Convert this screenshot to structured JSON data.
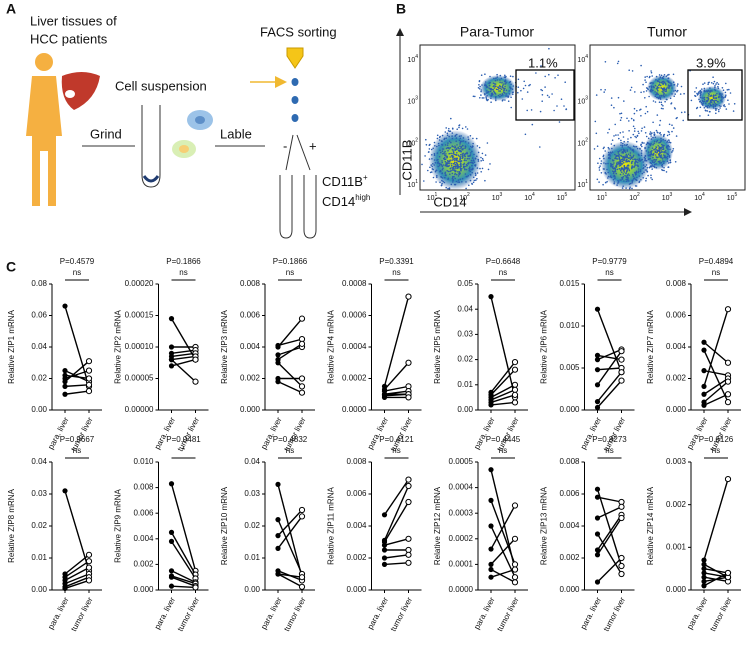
{
  "panel_a": {
    "label": "A",
    "patient_lines": [
      "Liver tissues of",
      "HCC patients"
    ],
    "suspension": "Cell suspension",
    "sorting": "FACS sorting",
    "grind": "Grind",
    "lable": "Lable",
    "minus": "-",
    "plus": "+",
    "markers": [
      {
        "main": "CD11B",
        "sup": "+"
      },
      {
        "main": "CD14",
        "sup": "high"
      }
    ]
  },
  "panel_b": {
    "label": "B",
    "titles": [
      "Para-Tumor",
      "Tumor"
    ],
    "gates": [
      "1.1%",
      "3.9%"
    ],
    "ylabel": "CD11B",
    "xlabel": "CD14",
    "yticks": [
      {
        "base": "10",
        "exp": "4"
      },
      {
        "base": "10",
        "exp": "3"
      },
      {
        "base": "10",
        "exp": "2"
      },
      {
        "base": "10",
        "exp": "1"
      }
    ],
    "xticks": [
      {
        "base": "10",
        "exp": "1"
      },
      {
        "base": "10",
        "exp": "2"
      },
      {
        "base": "10",
        "exp": "3"
      },
      {
        "base": "10",
        "exp": "4"
      },
      {
        "base": "10",
        "exp": "5"
      }
    ]
  },
  "panel_c": {
    "label": "C"
  },
  "chart_data": [
    {
      "type": "paired",
      "title": "P=0.4579",
      "annotation": "ns",
      "ylabel": "Relative ZIP1 mRNA",
      "categories": [
        "para. liver",
        "tumor liver"
      ],
      "color": "#000000",
      "ylim": [
        0,
        0.08
      ],
      "yticks": [
        {
          "value": 0,
          "label": "0.00"
        },
        0.02,
        0.04,
        0.06,
        0.08
      ],
      "series": [
        {
          "values": [
            0.066,
            0.015
          ]
        },
        {
          "values": [
            0.025,
            0.018
          ]
        },
        {
          "values": [
            0.022,
            0.02
          ]
        },
        {
          "values": [
            0.02,
            0.025
          ]
        },
        {
          "values": [
            0.018,
            0.031
          ]
        },
        {
          "values": [
            0.015,
            0.016
          ]
        },
        {
          "values": [
            0.01,
            0.012
          ]
        }
      ]
    },
    {
      "type": "paired",
      "title": "P=0.1866",
      "annotation": "ns",
      "ylabel": "Relative ZIP2 mRNA",
      "categories": [
        "para. liver",
        "tumor liver"
      ],
      "color": "#000000",
      "ylim": [
        0,
        0.0002
      ],
      "yticks": [
        {
          "value": 0,
          "label": "0.00000"
        },
        5e-05,
        {
          "value": 0.0001,
          "label": "0.00010"
        },
        0.00015,
        {
          "value": 0.0002,
          "label": "0.00020"
        }
      ],
      "series": [
        {
          "values": [
            0.000145,
            8e-05
          ]
        },
        {
          "values": [
            0.0001,
            0.0001
          ]
        },
        {
          "values": [
            9e-05,
            9.5e-05
          ]
        },
        {
          "values": [
            8.5e-05,
            9e-05
          ]
        },
        {
          "values": [
            8e-05,
            8.5e-05
          ]
        },
        {
          "values": [
            7e-05,
            8e-05
          ]
        },
        {
          "values": [
            8e-05,
            4.5e-05
          ]
        }
      ]
    },
    {
      "type": "paired",
      "title": "P=0.1866",
      "annotation": "ns",
      "ylabel": "Relative ZIP3 mRNA",
      "categories": [
        "para. liver",
        "tumor liver"
      ],
      "color": "#000000",
      "ylim": [
        0,
        0.008
      ],
      "yticks": [
        {
          "value": 0,
          "label": "0.000"
        },
        0.002,
        0.004,
        0.006,
        0.008
      ],
      "series": [
        {
          "values": [
            0.0041,
            0.0045
          ]
        },
        {
          "values": [
            0.004,
            0.0058
          ]
        },
        {
          "values": [
            0.0035,
            0.004
          ]
        },
        {
          "values": [
            0.0032,
            0.0042
          ]
        },
        {
          "values": [
            0.003,
            0.0015
          ]
        },
        {
          "values": [
            0.002,
            0.002
          ]
        },
        {
          "values": [
            0.0018,
            0.0011
          ]
        }
      ]
    },
    {
      "type": "paired",
      "title": "P=0.3391",
      "annotation": "ns",
      "ylabel": "Relative ZIP4 mRNA",
      "categories": [
        "para. liver",
        "tumor liver"
      ],
      "color": "#000000",
      "ylim": [
        0,
        0.0008
      ],
      "yticks": [
        {
          "value": 0,
          "label": "0.0000"
        },
        0.0002,
        0.0004,
        0.0006,
        0.0008
      ],
      "series": [
        {
          "values": [
            0.00015,
            0.00072
          ]
        },
        {
          "values": [
            0.00013,
            0.0003
          ]
        },
        {
          "values": [
            0.00012,
            0.00015
          ]
        },
        {
          "values": [
            0.0001,
            0.00012
          ]
        },
        {
          "values": [
            0.0001,
            0.0001
          ]
        },
        {
          "values": [
            9e-05,
            0.0001
          ]
        },
        {
          "values": [
            8e-05,
            8e-05
          ]
        }
      ]
    },
    {
      "type": "paired",
      "title": "P=0.6648",
      "annotation": "ns",
      "ylabel": "Relative ZIP5 mRNA",
      "categories": [
        "para. liver",
        "tumor liver"
      ],
      "color": "#000000",
      "ylim": [
        0,
        0.05
      ],
      "yticks": [
        {
          "value": 0,
          "label": "0.00"
        },
        0.01,
        0.02,
        0.03,
        0.04,
        0.05
      ],
      "series": [
        {
          "values": [
            0.045,
            0.005
          ]
        },
        {
          "values": [
            0.007,
            0.019
          ]
        },
        {
          "values": [
            0.006,
            0.016
          ]
        },
        {
          "values": [
            0.005,
            0.01
          ]
        },
        {
          "values": [
            0.004,
            0.008
          ]
        },
        {
          "values": [
            0.003,
            0.006
          ]
        },
        {
          "values": [
            0.002,
            0.003
          ]
        }
      ]
    },
    {
      "type": "paired",
      "title": "P=0.9779",
      "annotation": "ns",
      "ylabel": "Relative ZIP6 mRNA",
      "categories": [
        "para. liver",
        "tumor liver"
      ],
      "color": "#000000",
      "ylim": [
        0,
        0.015
      ],
      "yticks": [
        {
          "value": 0,
          "label": "0.000"
        },
        0.005,
        {
          "value": 0.01,
          "label": "0.010"
        },
        0.015
      ],
      "series": [
        {
          "values": [
            0.012,
            0.0045
          ]
        },
        {
          "values": [
            0.0065,
            0.006
          ]
        },
        {
          "values": [
            0.006,
            0.0072
          ]
        },
        {
          "values": [
            0.0048,
            0.005
          ]
        },
        {
          "values": [
            0.003,
            0.007
          ]
        },
        {
          "values": [
            0.001,
            0.0045
          ]
        },
        {
          "values": [
            0.0003,
            0.0035
          ]
        }
      ]
    },
    {
      "type": "paired",
      "title": "P=0.4894",
      "annotation": "ns",
      "ylabel": "Relative ZIP7 mRNA",
      "categories": [
        "para. liver",
        "tumor liver"
      ],
      "color": "#000000",
      "ylim": [
        0,
        0.008
      ],
      "yticks": [
        {
          "value": 0,
          "label": "0.000"
        },
        0.002,
        0.004,
        0.006,
        0.008
      ],
      "series": [
        {
          "values": [
            0.0043,
            0.003
          ]
        },
        {
          "values": [
            0.0038,
            0.0005
          ]
        },
        {
          "values": [
            0.0025,
            0.0022
          ]
        },
        {
          "values": [
            0.0015,
            0.0064
          ]
        },
        {
          "values": [
            0.001,
            0.002
          ]
        },
        {
          "values": [
            0.0005,
            0.0018
          ]
        },
        {
          "values": [
            0.0003,
            0.001
          ]
        }
      ]
    },
    {
      "type": "paired",
      "title": "P=0.9667",
      "annotation": "ns",
      "ylabel": "Relative ZIP8 mRNA",
      "categories": [
        "para. liver",
        "tumor liver"
      ],
      "color": "#000000",
      "ylim": [
        0,
        0.04
      ],
      "yticks": [
        {
          "value": 0,
          "label": "0.00"
        },
        0.01,
        0.02,
        0.03,
        0.04
      ],
      "series": [
        {
          "values": [
            0.031,
            0.006
          ]
        },
        {
          "values": [
            0.005,
            0.011
          ]
        },
        {
          "values": [
            0.004,
            0.009
          ]
        },
        {
          "values": [
            0.003,
            0.007
          ]
        },
        {
          "values": [
            0.002,
            0.005
          ]
        },
        {
          "values": [
            0.001,
            0.004
          ]
        },
        {
          "values": [
            0.0005,
            0.003
          ]
        }
      ]
    },
    {
      "type": "paired",
      "title": "P=0.0481",
      "annotation": "*",
      "ylabel": "Relative ZIP9 mRNA",
      "categories": [
        "para. liver",
        "tumor liver"
      ],
      "color": "#000000",
      "ylim": [
        0,
        0.01
      ],
      "yticks": [
        {
          "value": 0,
          "label": "0.000"
        },
        0.002,
        0.004,
        0.006,
        0.008,
        {
          "value": 0.01,
          "label": "0.010"
        }
      ],
      "series": [
        {
          "values": [
            0.0083,
            0.0015
          ]
        },
        {
          "values": [
            0.0045,
            0.0012
          ]
        },
        {
          "values": [
            0.0038,
            0.0009
          ]
        },
        {
          "values": [
            0.0015,
            0.0006
          ]
        },
        {
          "values": [
            0.0011,
            0.0005
          ]
        },
        {
          "values": [
            0.001,
            0.0003
          ]
        },
        {
          "values": [
            0.0003,
            0.0002
          ]
        }
      ]
    },
    {
      "type": "paired",
      "title": "P=0.4832",
      "annotation": "ns",
      "ylabel": "Relative ZIP10 mRNA",
      "categories": [
        "para. liver",
        "tumor liver"
      ],
      "color": "#000000",
      "ylim": [
        0,
        0.04
      ],
      "yticks": [
        {
          "value": 0,
          "label": "0.00"
        },
        0.01,
        0.02,
        0.03,
        0.04
      ],
      "series": [
        {
          "values": [
            0.033,
            0.004
          ]
        },
        {
          "values": [
            0.022,
            0.005
          ]
        },
        {
          "values": [
            0.017,
            0.025
          ]
        },
        {
          "values": [
            0.013,
            0.023
          ]
        },
        {
          "values": [
            0.006,
            0.003
          ]
        },
        {
          "values": [
            0.005,
            0.004
          ]
        },
        {
          "values": [
            0.005,
            0.001
          ]
        }
      ]
    },
    {
      "type": "paired",
      "title": "P=0.4121",
      "annotation": "ns",
      "ylabel": "Relative ZIP11 mRNA",
      "categories": [
        "para. liver",
        "tumor liver"
      ],
      "color": "#000000",
      "ylim": [
        0,
        0.008
      ],
      "yticks": [
        {
          "value": 0,
          "label": "0.000"
        },
        0.002,
        0.004,
        0.006,
        0.008
      ],
      "series": [
        {
          "values": [
            0.0047,
            0.0069
          ]
        },
        {
          "values": [
            0.0031,
            0.0065
          ]
        },
        {
          "values": [
            0.003,
            0.0055
          ]
        },
        {
          "values": [
            0.0028,
            0.0032
          ]
        },
        {
          "values": [
            0.0025,
            0.0025
          ]
        },
        {
          "values": [
            0.002,
            0.0022
          ]
        },
        {
          "values": [
            0.0016,
            0.0017
          ]
        }
      ]
    },
    {
      "type": "paired",
      "title": "P=0.4445",
      "annotation": "ns",
      "ylabel": "Relative ZIP12 mRNA",
      "categories": [
        "para. liver",
        "tumor liver"
      ],
      "color": "#000000",
      "ylim": [
        0,
        0.0005
      ],
      "yticks": [
        {
          "value": 0,
          "label": "0.0000"
        },
        0.0001,
        0.0002,
        0.0003,
        0.0004,
        0.0005
      ],
      "series": [
        {
          "values": [
            0.00047,
            8e-05
          ]
        },
        {
          "values": [
            0.00035,
            0.0001
          ]
        },
        {
          "values": [
            0.00025,
            5e-05
          ]
        },
        {
          "values": [
            0.00016,
            0.00033
          ]
        },
        {
          "values": [
            0.0001,
            0.0002
          ]
        },
        {
          "values": [
            8e-05,
            3e-05
          ]
        },
        {
          "values": [
            5e-05,
            8e-05
          ]
        }
      ]
    },
    {
      "type": "paired",
      "title": "P=0.8273",
      "annotation": "ns",
      "ylabel": "Relative ZIP13 mRNA",
      "categories": [
        "para. liver",
        "tumor liver"
      ],
      "color": "#000000",
      "ylim": [
        0,
        0.008
      ],
      "yticks": [
        {
          "value": 0,
          "label": "0.000"
        },
        0.002,
        0.004,
        0.006,
        0.008
      ],
      "series": [
        {
          "values": [
            0.0063,
            0.0015
          ]
        },
        {
          "values": [
            0.0058,
            0.0055
          ]
        },
        {
          "values": [
            0.0045,
            0.0052
          ]
        },
        {
          "values": [
            0.0035,
            0.001
          ]
        },
        {
          "values": [
            0.0025,
            0.0047
          ]
        },
        {
          "values": [
            0.0022,
            0.0045
          ]
        },
        {
          "values": [
            0.0005,
            0.002
          ]
        }
      ]
    },
    {
      "type": "paired",
      "title": "P=0.6126",
      "annotation": "ns",
      "ylabel": "Relative ZIP14 mRNA",
      "categories": [
        "para. liver",
        "tumor liver"
      ],
      "color": "#000000",
      "ylim": [
        0,
        0.003
      ],
      "yticks": [
        {
          "value": 0,
          "label": "0.000"
        },
        0.001,
        0.002,
        0.003
      ],
      "series": [
        {
          "values": [
            0.0007,
            0.0026
          ]
        },
        {
          "values": [
            0.0006,
            0.0003
          ]
        },
        {
          "values": [
            0.0005,
            0.0004
          ]
        },
        {
          "values": [
            0.0004,
            0.0003
          ]
        },
        {
          "values": [
            0.0003,
            0.0002
          ]
        },
        {
          "values": [
            0.0002,
            0.0003
          ]
        },
        {
          "values": [
            0.0001,
            0.0004
          ]
        }
      ]
    }
  ]
}
